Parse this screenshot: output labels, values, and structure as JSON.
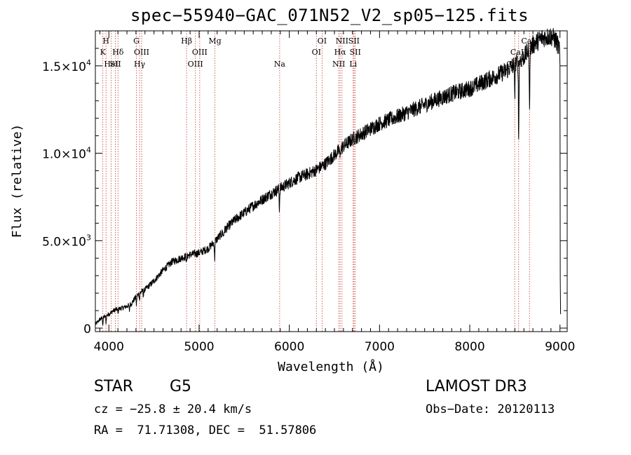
{
  "chart_data": {
    "type": "line",
    "title": "spec−55940−GAC_071N52_V2_sp05−125.fits",
    "xlabel": "Wavelength (Å)",
    "ylabel": "Flux (relative)",
    "xlim": [
      3850,
      9080
    ],
    "ylim": [
      -200,
      17000
    ],
    "x_ticks": [
      4000,
      5000,
      6000,
      7000,
      8000,
      9000
    ],
    "x_tick_labels": [
      "4000",
      "5000",
      "6000",
      "7000",
      "8000",
      "9000"
    ],
    "y_ticks": [
      {
        "value": 0,
        "base": "0",
        "exp": ""
      },
      {
        "value": 5000,
        "base": "5.0×10",
        "exp": "3"
      },
      {
        "value": 10000,
        "base": "1.0×10",
        "exp": "4"
      },
      {
        "value": 15000,
        "base": "1.5×10",
        "exp": "4"
      }
    ],
    "spectrum_anchors": [
      [
        3850,
        200
      ],
      [
        3900,
        500
      ],
      [
        3950,
        650
      ],
      [
        4000,
        800
      ],
      [
        4050,
        1000
      ],
      [
        4100,
        1100
      ],
      [
        4150,
        1150
      ],
      [
        4200,
        1250
      ],
      [
        4250,
        1400
      ],
      [
        4300,
        1800
      ],
      [
        4350,
        2050
      ],
      [
        4400,
        2200
      ],
      [
        4500,
        2700
      ],
      [
        4600,
        3300
      ],
      [
        4700,
        3800
      ],
      [
        4800,
        4000
      ],
      [
        4900,
        4200
      ],
      [
        5000,
        4300
      ],
      [
        5100,
        4550
      ],
      [
        5200,
        5100
      ],
      [
        5300,
        5700
      ],
      [
        5400,
        6200
      ],
      [
        5500,
        6600
      ],
      [
        5600,
        7000
      ],
      [
        5700,
        7350
      ],
      [
        5800,
        7700
      ],
      [
        5900,
        8000
      ],
      [
        6000,
        8300
      ],
      [
        6100,
        8600
      ],
      [
        6200,
        8800
      ],
      [
        6300,
        9050
      ],
      [
        6400,
        9400
      ],
      [
        6500,
        9900
      ],
      [
        6600,
        10400
      ],
      [
        6700,
        10800
      ],
      [
        6800,
        11100
      ],
      [
        6900,
        11400
      ],
      [
        7000,
        11700
      ],
      [
        7200,
        12100
      ],
      [
        7400,
        12550
      ],
      [
        7600,
        13000
      ],
      [
        7800,
        13400
      ],
      [
        8000,
        13700
      ],
      [
        8200,
        14200
      ],
      [
        8400,
        14700
      ],
      [
        8500,
        15100
      ],
      [
        8600,
        15500
      ],
      [
        8700,
        16200
      ],
      [
        8800,
        16600
      ],
      [
        8900,
        16700
      ],
      [
        8950,
        16500
      ],
      [
        8990,
        16000
      ]
    ],
    "absorption_dips": [
      [
        3933,
        400
      ],
      [
        3968,
        400
      ],
      [
        4101,
        300
      ],
      [
        4227,
        350
      ],
      [
        4305,
        500
      ],
      [
        4340,
        400
      ],
      [
        4383,
        300
      ],
      [
        4861,
        400
      ],
      [
        5172,
        1000
      ],
      [
        5270,
        300
      ],
      [
        5890,
        1100
      ],
      [
        6563,
        500
      ],
      [
        8498,
        1800
      ],
      [
        8542,
        4500
      ],
      [
        8662,
        3600
      ]
    ],
    "end_drop": [
      [
        9000,
        15000
      ],
      [
        9003,
        2800
      ],
      [
        9007,
        800
      ]
    ],
    "lines": [
      {
        "label": "H",
        "x": 3968,
        "row": 0
      },
      {
        "label": "K",
        "x": 3933,
        "row": 1
      },
      {
        "label": "HeI",
        "x": 4026,
        "row": 2
      },
      {
        "label": "Hδ",
        "x": 4101,
        "row": 1
      },
      {
        "label": "SII",
        "x": 4072,
        "row": 2
      },
      {
        "label": "G",
        "x": 4305,
        "row": 0
      },
      {
        "label": "OIII",
        "x": 4363,
        "row": 1
      },
      {
        "label": "Hγ",
        "x": 4340,
        "row": 2
      },
      {
        "label": "Hβ",
        "x": 4861,
        "row": 0
      },
      {
        "label": "OIII",
        "x": 5007,
        "row": 1
      },
      {
        "label": "OIII",
        "x": 4959,
        "row": 2
      },
      {
        "label": "Mg",
        "x": 5175,
        "row": 0
      },
      {
        "label": "Na",
        "x": 5893,
        "row": 2
      },
      {
        "label": "OI",
        "x": 6363,
        "row": 0
      },
      {
        "label": "OI",
        "x": 6300,
        "row": 1
      },
      {
        "label": "NII",
        "x": 6548,
        "row": 2
      },
      {
        "label": "NII",
        "x": 6584,
        "row": 0
      },
      {
        "label": "Hα",
        "x": 6563,
        "row": 1
      },
      {
        "label": "SII",
        "x": 6717,
        "row": 0
      },
      {
        "label": "SII",
        "x": 6731,
        "row": 1
      },
      {
        "label": "Li",
        "x": 6708,
        "row": 2
      },
      {
        "label": "CaII",
        "x": 8662,
        "row": 0
      },
      {
        "label": "CaII",
        "x": 8542,
        "row": 1
      },
      {
        "label": "CaII",
        "x": 8498,
        "row": 2
      }
    ]
  },
  "info": {
    "object_class": "STAR",
    "subclass": "G5",
    "survey": "LAMOST DR3",
    "cz": "cz = −25.8 ± 20.4 km/s",
    "obs_date": "Obs−Date: 20120113",
    "coords": "RA =  71.71308, DEC =  51.57806"
  },
  "colors": {
    "spectrum": "#000000",
    "line_markers": "#c0392b",
    "axes": "#000000",
    "background": "#ffffff"
  }
}
